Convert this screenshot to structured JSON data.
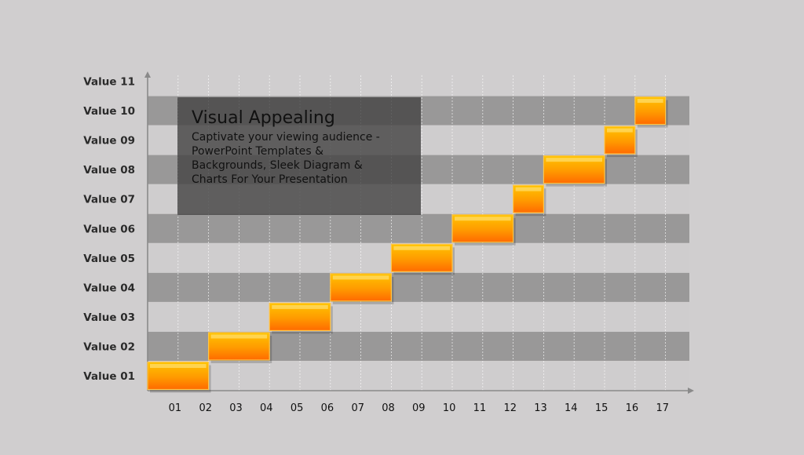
{
  "chart_data": {
    "type": "bar",
    "subtype": "step-gantt",
    "y_categories": [
      "Value 01",
      "Value 02",
      "Value 03",
      "Value 04",
      "Value 05",
      "Value 06",
      "Value 07",
      "Value 08",
      "Value 09",
      "Value 10",
      "Value 11"
    ],
    "x_ticks": [
      "01",
      "02",
      "03",
      "04",
      "05",
      "06",
      "07",
      "08",
      "09",
      "10",
      "11",
      "12",
      "13",
      "14",
      "15",
      "16",
      "17"
    ],
    "bars": [
      {
        "row": "Value 01",
        "start": 1,
        "end": 2
      },
      {
        "row": "Value 02",
        "start": 3,
        "end": 4
      },
      {
        "row": "Value 03",
        "start": 5,
        "end": 6
      },
      {
        "row": "Value 04",
        "start": 7,
        "end": 8
      },
      {
        "row": "Value 05",
        "start": 9,
        "end": 10
      },
      {
        "row": "Value 06",
        "start": 11,
        "end": 12
      },
      {
        "row": "Value 07",
        "start": 13,
        "end": 13
      },
      {
        "row": "Value 08",
        "start": 14,
        "end": 15
      },
      {
        "row": "Value 09",
        "start": 16,
        "end": 16
      },
      {
        "row": "Value 10",
        "start": 17,
        "end": 17
      }
    ],
    "bar_color": "#ff8c00",
    "band_color_dark": "#999898",
    "band_color_light": "#cfcdce",
    "grid": true
  },
  "callout": {
    "title": "Visual Appealing",
    "body": "Captivate your viewing audience - PowerPoint Templates & Backgrounds, Sleek Diagram & Charts For Your Presentation"
  }
}
